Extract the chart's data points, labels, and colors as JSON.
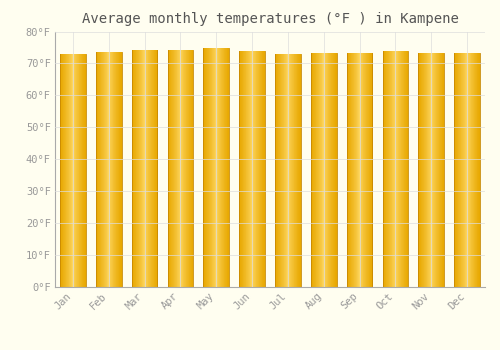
{
  "title": "Average monthly temperatures (°F ) in Kampene",
  "categories": [
    "Jan",
    "Feb",
    "Mar",
    "Apr",
    "May",
    "Jun",
    "Jul",
    "Aug",
    "Sep",
    "Oct",
    "Nov",
    "Dec"
  ],
  "values": [
    73.0,
    73.5,
    74.3,
    74.3,
    74.7,
    73.8,
    72.9,
    73.2,
    73.4,
    73.9,
    73.2,
    73.2
  ],
  "ylim": [
    0,
    80
  ],
  "yticks": [
    0,
    10,
    20,
    30,
    40,
    50,
    60,
    70,
    80
  ],
  "ytick_labels": [
    "0°F",
    "10°F",
    "20°F",
    "30°F",
    "40°F",
    "50°F",
    "60°F",
    "70°F",
    "80°F"
  ],
  "bar_color_center": "#FFD966",
  "bar_color_edge": "#E8A800",
  "background_color": "#FFFEF0",
  "plot_bg_color": "#FFFEF0",
  "grid_color": "#DDDDDD",
  "title_fontsize": 10,
  "tick_fontsize": 7.5,
  "title_color": "#555555",
  "tick_color": "#999999",
  "spine_color": "#AAAAAA",
  "bar_width": 0.72,
  "num_gradient_slices": 60
}
